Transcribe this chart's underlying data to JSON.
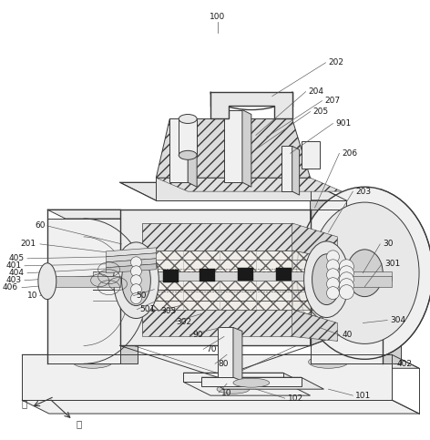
{
  "bg_color": "#ffffff",
  "line_color": "#3a3a3a",
  "label_color": "#1a1a1a",
  "fig_width": 4.72,
  "fig_height": 4.83,
  "dpi": 100,
  "fontsize": 6.5,
  "hatch_color": "#888888",
  "gray_light": "#e8e8e8",
  "gray_mid": "#d0d0d0",
  "gray_dark": "#b0b0b0",
  "gray_fill": "#c8c8c8",
  "gray_white": "#f0f0f0",
  "black_slot": "#1a1a1a"
}
